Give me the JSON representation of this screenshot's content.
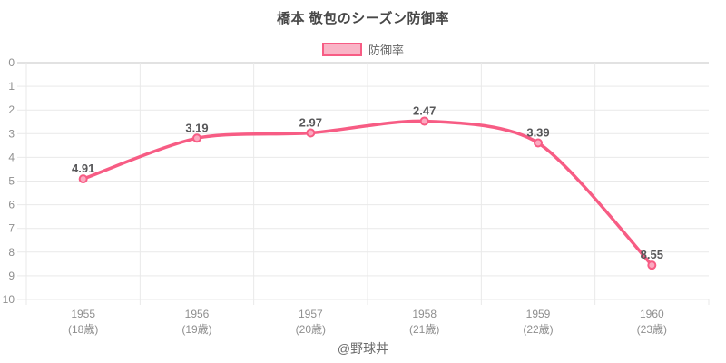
{
  "title": "橋本 敬包のシーズン防御率",
  "footer_credit": "@野球丼",
  "colors": {
    "line": "#f75c84",
    "point_fill": "#fba9c0",
    "legend_fill": "#f9b4c6",
    "grid": "#e9e9e9",
    "zero_line": "#c4c4c4",
    "tick_text": "#8f8f8f",
    "data_label_text": "#58585a"
  },
  "chart_data": {
    "type": "line",
    "title": "橋本 敬包のシーズン防御率",
    "series_name": "防御率",
    "categories": [
      "1955",
      "1956",
      "1957",
      "1958",
      "1959",
      "1960"
    ],
    "category_sublabels": [
      "(18歳)",
      "(19歳)",
      "(20歳)",
      "(21歳)",
      "(22歳)",
      "(23歳)"
    ],
    "values": [
      4.91,
      3.19,
      2.97,
      2.47,
      3.39,
      8.55
    ],
    "point_labels": [
      "4.91",
      "3.19",
      "2.97",
      "2.47",
      "3.39",
      "8.55"
    ],
    "y_ticks": [
      0,
      1,
      2,
      3,
      4,
      5,
      6,
      7,
      8,
      9,
      10
    ],
    "ylim": [
      0,
      10
    ],
    "y_inverted": true,
    "xlabel": "",
    "ylabel": "",
    "grid": true,
    "legend_position": "top"
  }
}
